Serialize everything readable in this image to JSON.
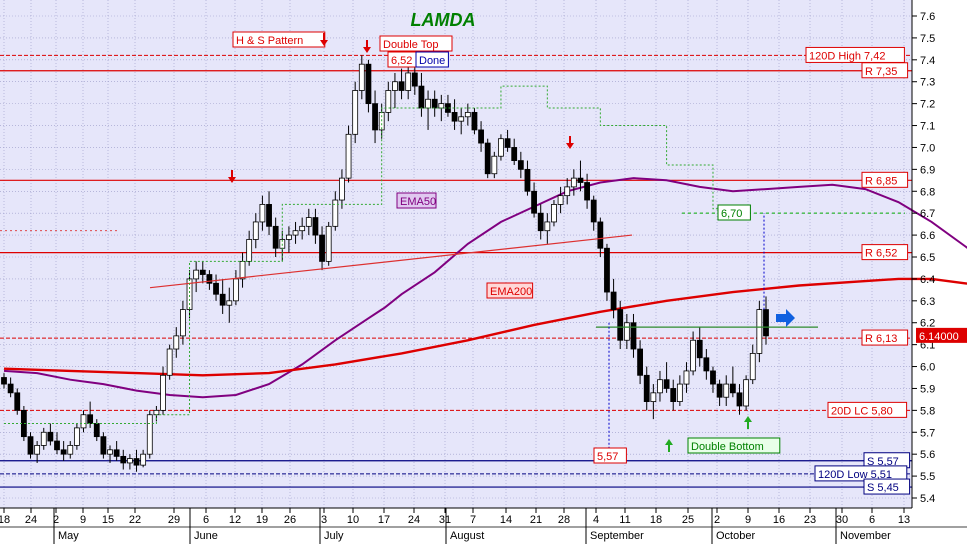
{
  "chart_data": {
    "type": "candlestick",
    "title": "LAMDA",
    "ylim": [
      5.4,
      7.65
    ],
    "y_ticks": [
      5.4,
      5.5,
      5.6,
      5.7,
      5.8,
      5.9,
      6.0,
      6.1,
      6.2,
      6.3,
      6.4,
      6.5,
      6.6,
      6.7,
      6.8,
      6.9,
      7.0,
      7.1,
      7.2,
      7.3,
      7.4,
      7.5,
      7.6
    ],
    "y_tick_labels": [
      "5.4",
      "5.5",
      "5.6",
      "5.7",
      "5.8",
      "5.9",
      "6.0",
      "6.1",
      "6.2",
      "6.3",
      "6.4",
      "6.5",
      "6.6",
      "6.7",
      "6.8",
      "6.9",
      "7.0",
      "7.1",
      "7.2",
      "7.3",
      "7.4",
      "7.5",
      "7.6"
    ],
    "x_day_ticks": [
      "18",
      "24",
      "2",
      "9",
      "15",
      "22",
      "29",
      "6",
      "12",
      "19",
      "26",
      "3",
      "10",
      "17",
      "24",
      "31",
      "7",
      "14",
      "21",
      "28",
      "4",
      "11",
      "18",
      "25",
      "2",
      "9",
      "16",
      "23",
      "30",
      "6",
      "13"
    ],
    "x_month_labels": [
      "May",
      "June",
      "July",
      "August",
      "September",
      "October",
      "November"
    ],
    "current_price_label": "6.14000",
    "colors": {
      "background": "#e6e6fa",
      "up_candle": "#ffffff",
      "down_candle": "#000000",
      "ema50": "#800080",
      "ema200": "#dd0000",
      "resistance": "#dd0000",
      "support": "#000080",
      "title": "#008000"
    },
    "horizontal_levels": [
      {
        "label": "120D High 7,42",
        "value": 7.42,
        "style": "dashed",
        "color": "#dd0000"
      },
      {
        "label": "R 7,35",
        "value": 7.35,
        "style": "solid",
        "color": "#dd0000"
      },
      {
        "label": "R 6,85",
        "value": 6.85,
        "style": "solid",
        "color": "#dd0000"
      },
      {
        "label": "R 6,52",
        "value": 6.52,
        "style": "solid",
        "color": "#dd0000"
      },
      {
        "label": "R 6,13",
        "value": 6.13,
        "style": "dashed",
        "color": "#dd0000"
      },
      {
        "label": "20D LC 5,80",
        "value": 5.8,
        "style": "dashed",
        "color": "#dd0000"
      },
      {
        "label": "S 5,57",
        "value": 5.57,
        "style": "solid",
        "color": "#000080"
      },
      {
        "label": "120D Low 5,51",
        "value": 5.51,
        "style": "dashed",
        "color": "#000080"
      },
      {
        "label": "S 5,45",
        "value": 5.45,
        "style": "solid",
        "color": "#000080"
      }
    ],
    "annotations": [
      {
        "text": "H & S Pattern"
      },
      {
        "text": "Double Top"
      },
      {
        "text": "6,52"
      },
      {
        "text": "Done"
      },
      {
        "text": "EMA50"
      },
      {
        "text": "EMA200"
      },
      {
        "text": "6,70"
      },
      {
        "text": "5,57"
      },
      {
        "text": "Double Bottom"
      }
    ],
    "series": [
      {
        "name": "EMA50",
        "values": [
          [
            0,
            5.98
          ],
          [
            10,
            5.97
          ],
          [
            20,
            5.94
          ],
          [
            30,
            5.92
          ],
          [
            40,
            5.89
          ],
          [
            50,
            5.87
          ],
          [
            60,
            5.86
          ],
          [
            70,
            5.87
          ],
          [
            80,
            5.92
          ],
          [
            90,
            6.01
          ],
          [
            100,
            6.12
          ],
          [
            110,
            6.22
          ],
          [
            115,
            6.27
          ],
          [
            120,
            6.33
          ],
          [
            130,
            6.43
          ],
          [
            140,
            6.56
          ],
          [
            150,
            6.66
          ],
          [
            160,
            6.73
          ],
          [
            170,
            6.8
          ],
          [
            180,
            6.84
          ],
          [
            190,
            6.86
          ],
          [
            200,
            6.85
          ],
          [
            210,
            6.82
          ],
          [
            220,
            6.8
          ],
          [
            230,
            6.81
          ],
          [
            240,
            6.82
          ],
          [
            250,
            6.83
          ],
          [
            260,
            6.81
          ],
          [
            270,
            6.75
          ],
          [
            280,
            6.66
          ],
          [
            290,
            6.55
          ],
          [
            300,
            6.44
          ],
          [
            310,
            6.35
          ],
          [
            315,
            6.31
          ],
          [
            320,
            6.3
          ]
        ]
      },
      {
        "name": "EMA200",
        "values": [
          [
            0,
            5.99
          ],
          [
            20,
            5.98
          ],
          [
            40,
            5.97
          ],
          [
            60,
            5.96
          ],
          [
            80,
            5.97
          ],
          [
            100,
            6.01
          ],
          [
            120,
            6.06
          ],
          [
            140,
            6.12
          ],
          [
            160,
            6.19
          ],
          [
            180,
            6.25
          ],
          [
            200,
            6.3
          ],
          [
            220,
            6.34
          ],
          [
            240,
            6.37
          ],
          [
            260,
            6.39
          ],
          [
            270,
            6.4
          ],
          [
            280,
            6.4
          ],
          [
            290,
            6.38
          ],
          [
            300,
            6.36
          ],
          [
            310,
            6.34
          ],
          [
            320,
            6.33
          ]
        ]
      }
    ],
    "candles": [
      [
        0,
        5.95,
        5.97,
        5.9,
        5.92
      ],
      [
        2,
        5.92,
        5.95,
        5.86,
        5.88
      ],
      [
        4,
        5.88,
        5.9,
        5.78,
        5.8
      ],
      [
        6,
        5.8,
        5.82,
        5.66,
        5.68
      ],
      [
        8,
        5.68,
        5.7,
        5.58,
        5.6
      ],
      [
        10,
        5.6,
        5.66,
        5.56,
        5.64
      ],
      [
        12,
        5.64,
        5.72,
        5.62,
        5.7
      ],
      [
        14,
        5.7,
        5.74,
        5.64,
        5.66
      ],
      [
        16,
        5.66,
        5.7,
        5.6,
        5.62
      ],
      [
        18,
        5.62,
        5.66,
        5.57,
        5.6
      ],
      [
        20,
        5.6,
        5.66,
        5.58,
        5.64
      ],
      [
        22,
        5.64,
        5.74,
        5.62,
        5.72
      ],
      [
        24,
        5.72,
        5.8,
        5.7,
        5.78
      ],
      [
        26,
        5.78,
        5.84,
        5.72,
        5.74
      ],
      [
        28,
        5.74,
        5.76,
        5.66,
        5.68
      ],
      [
        30,
        5.68,
        5.7,
        5.58,
        5.6
      ],
      [
        32,
        5.6,
        5.64,
        5.56,
        5.62
      ],
      [
        34,
        5.62,
        5.66,
        5.57,
        5.59
      ],
      [
        36,
        5.59,
        5.62,
        5.53,
        5.56
      ],
      [
        38,
        5.56,
        5.6,
        5.53,
        5.58
      ],
      [
        40,
        5.58,
        5.62,
        5.52,
        5.55
      ],
      [
        42,
        5.55,
        5.62,
        5.54,
        5.6
      ],
      [
        44,
        5.6,
        5.8,
        5.58,
        5.78
      ],
      [
        46,
        5.78,
        5.82,
        5.75,
        5.8
      ],
      [
        48,
        5.8,
        6.0,
        5.78,
        5.96
      ],
      [
        50,
        5.96,
        6.1,
        5.94,
        6.08
      ],
      [
        52,
        6.08,
        6.18,
        6.04,
        6.14
      ],
      [
        54,
        6.14,
        6.3,
        6.1,
        6.26
      ],
      [
        56,
        6.26,
        6.44,
        6.22,
        6.4
      ],
      [
        58,
        6.4,
        6.48,
        6.34,
        6.44
      ],
      [
        60,
        6.44,
        6.48,
        6.38,
        6.42
      ],
      [
        62,
        6.42,
        6.44,
        6.35,
        6.38
      ],
      [
        64,
        6.38,
        6.42,
        6.3,
        6.33
      ],
      [
        66,
        6.33,
        6.4,
        6.24,
        6.28
      ],
      [
        68,
        6.28,
        6.36,
        6.2,
        6.3
      ],
      [
        70,
        6.3,
        6.44,
        6.28,
        6.4
      ],
      [
        72,
        6.4,
        6.52,
        6.36,
        6.48
      ],
      [
        74,
        6.48,
        6.62,
        6.46,
        6.58
      ],
      [
        76,
        6.58,
        6.7,
        6.54,
        6.66
      ],
      [
        78,
        6.66,
        6.78,
        6.62,
        6.74
      ],
      [
        80,
        6.74,
        6.8,
        6.6,
        6.64
      ],
      [
        82,
        6.64,
        6.68,
        6.5,
        6.54
      ],
      [
        84,
        6.54,
        6.62,
        6.48,
        6.58
      ],
      [
        86,
        6.58,
        6.64,
        6.52,
        6.6
      ],
      [
        88,
        6.6,
        6.66,
        6.56,
        6.62
      ],
      [
        90,
        6.62,
        6.68,
        6.58,
        6.64
      ],
      [
        92,
        6.64,
        6.72,
        6.6,
        6.68
      ],
      [
        94,
        6.68,
        6.72,
        6.56,
        6.6
      ],
      [
        96,
        6.6,
        6.64,
        6.44,
        6.48
      ],
      [
        98,
        6.48,
        6.66,
        6.46,
        6.64
      ],
      [
        100,
        6.64,
        6.8,
        6.62,
        6.76
      ],
      [
        102,
        6.76,
        6.9,
        6.72,
        6.86
      ],
      [
        104,
        6.86,
        7.1,
        6.84,
        7.06
      ],
      [
        106,
        7.06,
        7.3,
        7.02,
        7.26
      ],
      [
        108,
        7.26,
        7.42,
        7.22,
        7.38
      ],
      [
        110,
        7.38,
        7.4,
        7.16,
        7.2
      ],
      [
        112,
        7.2,
        7.26,
        7.02,
        7.08
      ],
      [
        114,
        7.08,
        7.2,
        7.04,
        7.16
      ],
      [
        116,
        7.16,
        7.3,
        7.12,
        7.26
      ],
      [
        118,
        7.26,
        7.34,
        7.18,
        7.3
      ],
      [
        120,
        7.3,
        7.36,
        7.22,
        7.26
      ],
      [
        122,
        7.26,
        7.38,
        7.22,
        7.34
      ],
      [
        124,
        7.34,
        7.38,
        7.24,
        7.28
      ],
      [
        126,
        7.28,
        7.34,
        7.14,
        7.18
      ],
      [
        128,
        7.18,
        7.26,
        7.08,
        7.22
      ],
      [
        130,
        7.22,
        7.26,
        7.14,
        7.18
      ],
      [
        132,
        7.18,
        7.24,
        7.12,
        7.2
      ],
      [
        134,
        7.2,
        7.24,
        7.14,
        7.16
      ],
      [
        136,
        7.16,
        7.22,
        7.08,
        7.12
      ],
      [
        138,
        7.12,
        7.18,
        7.06,
        7.14
      ],
      [
        140,
        7.14,
        7.2,
        7.1,
        7.16
      ],
      [
        142,
        7.16,
        7.18,
        7.06,
        7.08
      ],
      [
        144,
        7.08,
        7.12,
        6.98,
        7.02
      ],
      [
        146,
        7.02,
        7.04,
        6.86,
        6.88
      ],
      [
        148,
        6.88,
        6.98,
        6.86,
        6.96
      ],
      [
        150,
        6.96,
        7.06,
        6.94,
        7.04
      ],
      [
        152,
        7.04,
        7.08,
        6.98,
        7.0
      ],
      [
        154,
        7.0,
        7.04,
        6.92,
        6.94
      ],
      [
        156,
        6.94,
        6.98,
        6.86,
        6.9
      ],
      [
        158,
        6.9,
        6.94,
        6.78,
        6.8
      ],
      [
        160,
        6.8,
        6.84,
        6.68,
        6.7
      ],
      [
        162,
        6.7,
        6.74,
        6.58,
        6.62
      ],
      [
        164,
        6.62,
        6.7,
        6.56,
        6.66
      ],
      [
        166,
        6.66,
        6.76,
        6.64,
        6.74
      ],
      [
        168,
        6.74,
        6.82,
        6.7,
        6.78
      ],
      [
        170,
        6.78,
        6.86,
        6.74,
        6.82
      ],
      [
        172,
        6.82,
        6.9,
        6.78,
        6.86
      ],
      [
        174,
        6.86,
        6.94,
        6.8,
        6.84
      ],
      [
        176,
        6.84,
        6.88,
        6.72,
        6.76
      ],
      [
        178,
        6.76,
        6.78,
        6.62,
        6.66
      ],
      [
        180,
        6.66,
        6.68,
        6.5,
        6.54
      ],
      [
        182,
        6.54,
        6.56,
        6.3,
        6.34
      ],
      [
        184,
        6.34,
        6.4,
        6.22,
        6.26
      ],
      [
        186,
        6.26,
        6.3,
        6.08,
        6.12
      ],
      [
        188,
        6.12,
        6.24,
        6.08,
        6.2
      ],
      [
        190,
        6.2,
        6.24,
        6.04,
        6.08
      ],
      [
        192,
        6.08,
        6.12,
        5.92,
        5.96
      ],
      [
        194,
        5.96,
        6.0,
        5.8,
        5.84
      ],
      [
        196,
        5.84,
        5.92,
        5.76,
        5.88
      ],
      [
        198,
        5.88,
        5.98,
        5.84,
        5.94
      ],
      [
        200,
        5.94,
        6.02,
        5.88,
        5.9
      ],
      [
        202,
        5.9,
        5.94,
        5.8,
        5.84
      ],
      [
        204,
        5.84,
        5.96,
        5.82,
        5.92
      ],
      [
        206,
        5.92,
        6.02,
        5.88,
        5.98
      ],
      [
        208,
        5.98,
        6.16,
        5.96,
        6.12
      ],
      [
        210,
        6.12,
        6.18,
        6.0,
        6.04
      ],
      [
        212,
        6.04,
        6.08,
        5.94,
        5.98
      ],
      [
        214,
        5.98,
        6.0,
        5.88,
        5.92
      ],
      [
        216,
        5.92,
        5.94,
        5.82,
        5.86
      ],
      [
        218,
        5.86,
        5.96,
        5.82,
        5.92
      ],
      [
        220,
        5.92,
        6.0,
        5.86,
        5.88
      ],
      [
        222,
        5.88,
        5.92,
        5.78,
        5.82
      ],
      [
        224,
        5.82,
        5.96,
        5.8,
        5.94
      ],
      [
        226,
        5.94,
        6.1,
        5.92,
        6.06
      ],
      [
        228,
        6.06,
        6.3,
        6.02,
        6.26
      ],
      [
        230,
        6.26,
        6.32,
        6.1,
        6.14
      ]
    ]
  }
}
